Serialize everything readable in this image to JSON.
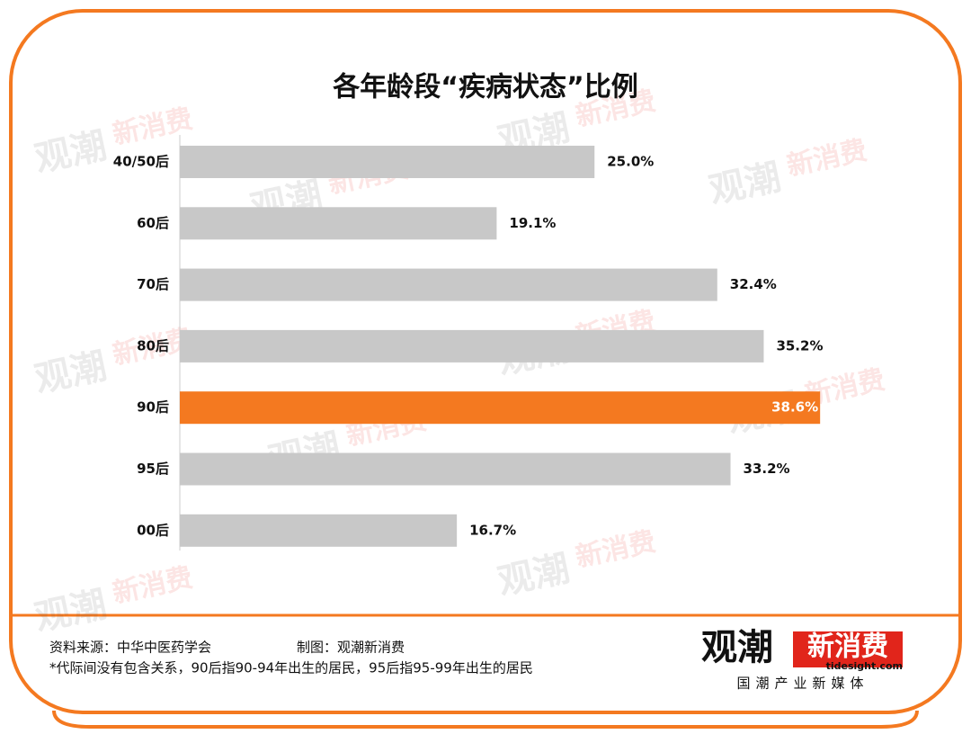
{
  "chart_data": {
    "type": "bar",
    "orientation": "horizontal",
    "title": "各年龄段“疾病状态”比例",
    "categories": [
      "40/50后",
      "60后",
      "70后",
      "80后",
      "90后",
      "95后",
      "00后"
    ],
    "values": [
      25.0,
      19.1,
      32.4,
      35.2,
      38.6,
      33.2,
      16.7
    ],
    "value_labels": [
      "25.0%",
      "19.1%",
      "32.4%",
      "35.2%",
      "38.6%",
      "33.2%",
      "16.7%"
    ],
    "colors": [
      "#c8c8c8",
      "#c8c8c8",
      "#c8c8c8",
      "#c8c8c8",
      "#f47920",
      "#c8c8c8",
      "#c8c8c8"
    ]
  },
  "footer": {
    "source": "资料来源：中华中医药学会",
    "credit": "制图：观潮新消费",
    "note": "*代际间没有包含关系，90后指90-94年出生的居民，95后指95-99年出生的居民"
  },
  "logo": {
    "name_a": "观潮",
    "name_b": "新消费",
    "site": "tidesight.com",
    "slogan": "国潮产业新媒体"
  }
}
